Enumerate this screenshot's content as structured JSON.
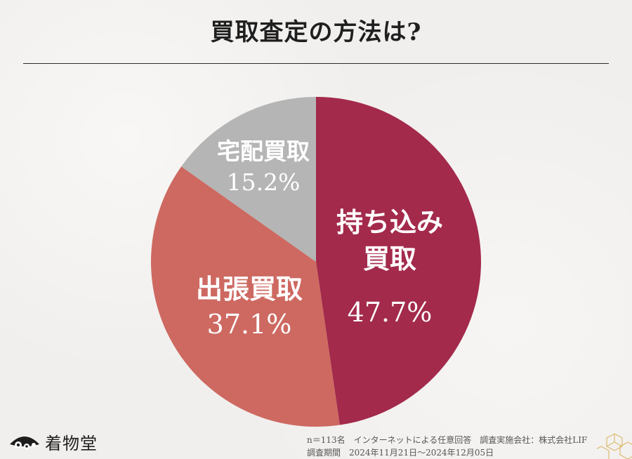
{
  "title": "買取査定の方法は?",
  "colors": {
    "motikomi": "#a32a4b",
    "shutcho": "#cd6961",
    "takuhai": "#b5b5b5",
    "background": "#f1efed"
  },
  "chart_data": {
    "type": "pie",
    "title": "買取査定の方法は?",
    "start": "12 o'clock",
    "direction": "clockwise",
    "slices": [
      {
        "label_lines": [
          "持ち込み",
          "買取"
        ],
        "value": 47.7,
        "value_label": "47.7%",
        "color": "#a32a4b"
      },
      {
        "label_lines": [
          "出張買取"
        ],
        "value": 37.1,
        "value_label": "37.1%",
        "color": "#cd6961"
      },
      {
        "label_lines": [
          "宅配買取"
        ],
        "value": 15.2,
        "value_label": "15.2%",
        "color": "#b5b5b5"
      }
    ]
  },
  "logo": {
    "name": "着物堂",
    "icon": "flower-fan-icon"
  },
  "footnote": {
    "line1": "n＝113名　インターネットによる任意回答　調査実施会社：株式会社LIF",
    "line2": "調査期間　2024年11月21日～2024年12月05日"
  },
  "decoration": {
    "icon": "gold-hexagon-pattern-icon"
  }
}
